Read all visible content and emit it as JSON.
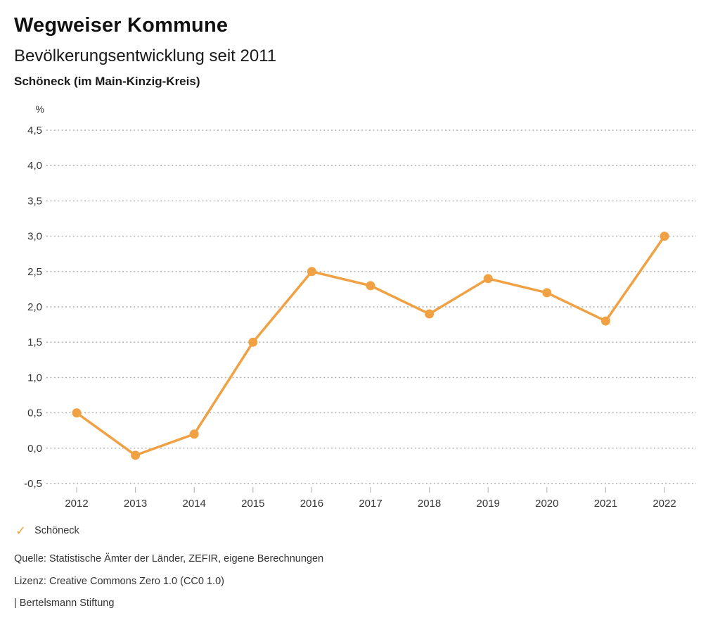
{
  "header": {
    "title": "Wegweiser Kommune",
    "subtitle": "Bevölkerungsentwicklung seit 2011",
    "region": "Schöneck (im Main-Kinzig-Kreis)"
  },
  "chart_data": {
    "type": "line",
    "title": "Bevölkerungsentwicklung seit 2011",
    "subtitle": "Schöneck (im Main-Kinzig-Kreis)",
    "unit": "%",
    "x": [
      2012,
      2013,
      2014,
      2015,
      2016,
      2017,
      2018,
      2019,
      2020,
      2021,
      2022
    ],
    "series": [
      {
        "name": "Schöneck",
        "values": [
          0.5,
          -0.1,
          0.2,
          1.5,
          2.5,
          2.3,
          1.9,
          2.4,
          2.2,
          1.8,
          3.0
        ],
        "color": "#F0A143",
        "marker": "circle"
      }
    ],
    "ylim": [
      -0.5,
      4.5
    ],
    "ytick_step": 0.5,
    "ytick_labels_top_to_bottom": [
      "4,5",
      "4,0",
      "3,5",
      "3,0",
      "2,5",
      "2,0",
      "1,5",
      "1,0",
      "0,5",
      "0,0",
      "-0,5"
    ],
    "grid": "horizontal-dotted",
    "gridline_color": "#ADADAD",
    "tick_color": "#BBBBBB",
    "axis_text_color": "#333333",
    "legend_position": "bottom-left"
  },
  "legend": {
    "items": [
      {
        "icon": "check-icon",
        "glyph": "✓",
        "label": "Schöneck",
        "color": "#F0A143"
      }
    ]
  },
  "footer": {
    "source": "Quelle: Statistische Ämter der Länder, ZEFIR, eigene Berechnungen",
    "license": "Lizenz: Creative Commons Zero 1.0 (CC0 1.0)",
    "attribution": "| Bertelsmann Stiftung"
  }
}
